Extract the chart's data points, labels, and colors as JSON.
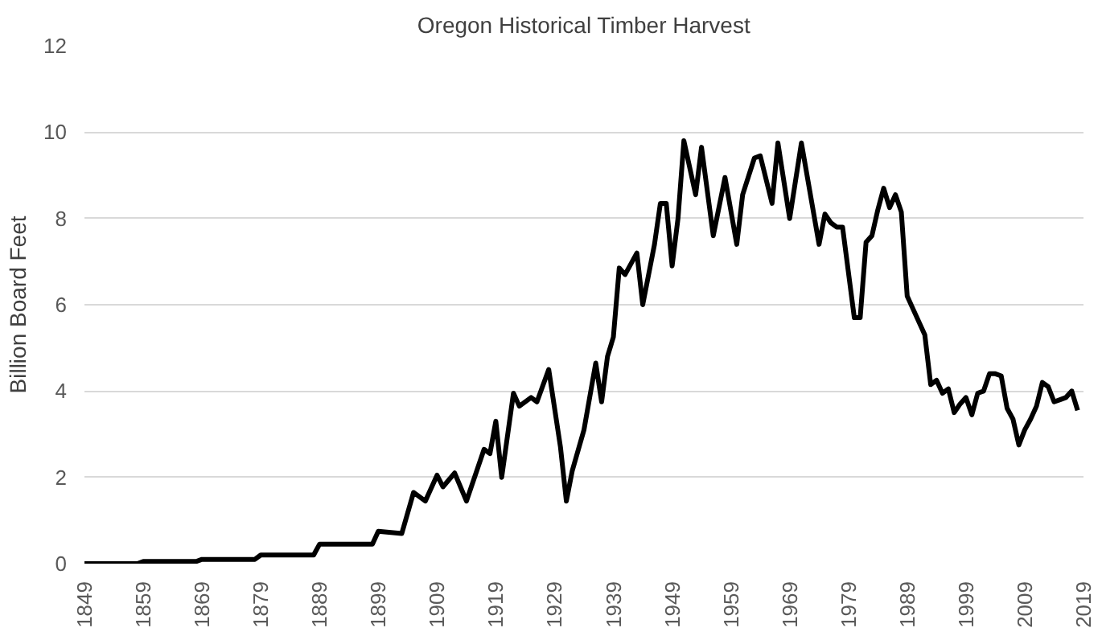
{
  "chart_data": {
    "type": "line",
    "title": "Oregon Historical Timber Harvest",
    "ylabel": "Billion Board Feet",
    "x": [
      1849,
      1858,
      1859,
      1868,
      1869,
      1878,
      1879,
      1888,
      1889,
      1898,
      1899,
      1903,
      1905,
      1907,
      1909,
      1910,
      1912,
      1914,
      1916,
      1917,
      1918,
      1919,
      1920,
      1922,
      1923,
      1925,
      1926,
      1928,
      1930,
      1931,
      1932,
      1934,
      1936,
      1937,
      1938,
      1939,
      1940,
      1941,
      1943,
      1944,
      1946,
      1947,
      1948,
      1949,
      1950,
      1951,
      1953,
      1954,
      1956,
      1958,
      1960,
      1961,
      1963,
      1964,
      1966,
      1967,
      1969,
      1971,
      1974,
      1975,
      1976,
      1977,
      1978,
      1980,
      1981,
      1982,
      1983,
      1984,
      1985,
      1986,
      1987,
      1988,
      1989,
      1990,
      1992,
      1993,
      1994,
      1995,
      1996,
      1997,
      1998,
      1999,
      2000,
      2001,
      2002,
      2003,
      2004,
      2005,
      2006,
      2007,
      2008,
      2009,
      2010,
      2011,
      2012,
      2013,
      2014,
      2015,
      2016,
      2017,
      2018
    ],
    "series": [
      {
        "color": "#000000",
        "values": [
          0,
          0,
          0.05,
          0.05,
          0.1,
          0.1,
          0.2,
          0.2,
          0.45,
          0.45,
          0.75,
          0.7,
          1.65,
          1.45,
          2.05,
          1.78,
          2.1,
          1.45,
          2.25,
          2.65,
          2.55,
          3.3,
          2.0,
          3.95,
          3.65,
          3.85,
          3.75,
          4.5,
          2.7,
          1.45,
          2.15,
          3.1,
          4.65,
          3.75,
          4.8,
          5.25,
          6.85,
          6.7,
          7.2,
          6.0,
          7.4,
          8.35,
          8.35,
          6.9,
          8.0,
          9.8,
          8.55,
          9.65,
          7.6,
          8.95,
          7.4,
          8.55,
          9.4,
          9.45,
          8.35,
          9.75,
          8.0,
          9.75,
          7.4,
          8.1,
          7.9,
          7.8,
          7.8,
          5.7,
          5.7,
          7.45,
          7.6,
          8.2,
          8.7,
          8.25,
          8.55,
          8.15,
          6.2,
          5.9,
          5.3,
          4.15,
          4.25,
          3.95,
          4.05,
          3.5,
          3.7,
          3.85,
          3.45,
          3.95,
          4.0,
          4.4,
          4.4,
          4.35,
          3.6,
          3.35,
          2.75,
          3.1,
          3.35,
          3.65,
          4.2,
          4.1,
          3.75,
          3.8,
          3.85,
          4.0,
          3.55
        ]
      }
    ],
    "xlim": [
      1849,
      2019
    ],
    "xticks": [
      1849,
      1859,
      1869,
      1879,
      1889,
      1899,
      1909,
      1919,
      1929,
      1939,
      1949,
      1959,
      1969,
      1979,
      1989,
      1999,
      2009,
      2019
    ],
    "ylim": [
      0,
      12
    ],
    "yticks": [
      0,
      2,
      4,
      6,
      8,
      10,
      12
    ],
    "grid": "y",
    "marker": "none",
    "line_style": "solid"
  }
}
